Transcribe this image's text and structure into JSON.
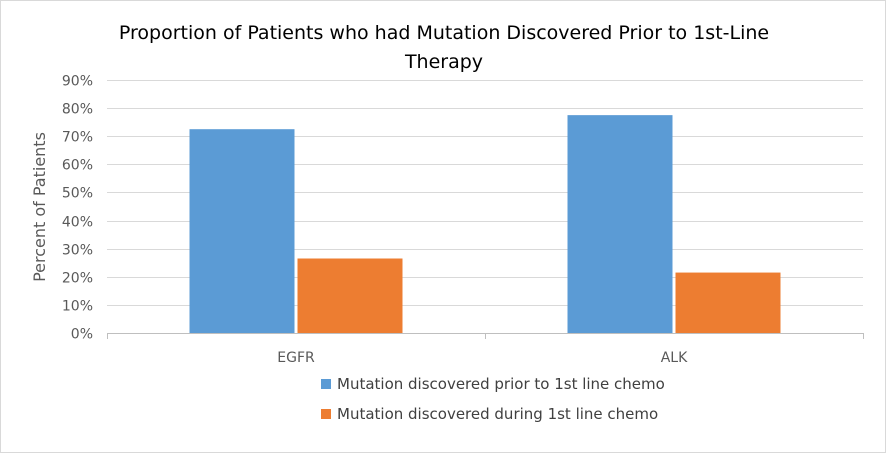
{
  "chart_data": {
    "type": "bar",
    "title": "Proportion of Patients who had Mutation Discovered Prior to 1st-Line Therapy",
    "title_lines": [
      "Proportion of Patients who had Mutation Discovered Prior to 1st-Line",
      "Therapy"
    ],
    "xlabel": "",
    "ylabel": "Percent of Patients",
    "categories": [
      "EGFR",
      "ALK"
    ],
    "series": [
      {
        "name": "Mutation discovered prior to 1st line chemo",
        "values": [
          72.5,
          77.5
        ],
        "color": "#5b9bd5"
      },
      {
        "name": "Mutation discovered during 1st line chemo",
        "values": [
          26.5,
          21.5
        ],
        "color": "#ed7d31"
      }
    ],
    "ylim": [
      0,
      90
    ],
    "yticks": [
      0,
      10,
      20,
      30,
      40,
      50,
      60,
      70,
      80,
      90
    ],
    "ytick_labels": [
      "0%",
      "10%",
      "20%",
      "30%",
      "40%",
      "50%",
      "60%",
      "70%",
      "80%",
      "90%"
    ],
    "grid": true,
    "gridline_color": "#d9d9d9",
    "legend_position": "bottom"
  }
}
